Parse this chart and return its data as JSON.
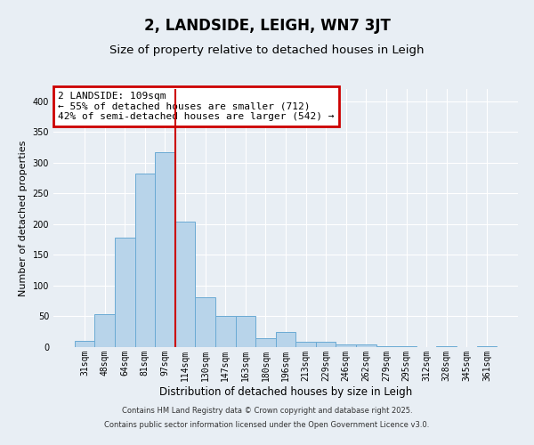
{
  "title": "2, LANDSIDE, LEIGH, WN7 3JT",
  "subtitle": "Size of property relative to detached houses in Leigh",
  "xlabel": "Distribution of detached houses by size in Leigh",
  "ylabel": "Number of detached properties",
  "bar_labels": [
    "31sqm",
    "48sqm",
    "64sqm",
    "81sqm",
    "97sqm",
    "114sqm",
    "130sqm",
    "147sqm",
    "163sqm",
    "180sqm",
    "196sqm",
    "213sqm",
    "229sqm",
    "246sqm",
    "262sqm",
    "279sqm",
    "295sqm",
    "312sqm",
    "328sqm",
    "345sqm",
    "361sqm"
  ],
  "bar_values": [
    10,
    54,
    178,
    283,
    317,
    204,
    81,
    51,
    51,
    15,
    24,
    8,
    9,
    4,
    4,
    1,
    1,
    0,
    1,
    0,
    1
  ],
  "bar_color": "#b8d4ea",
  "bar_edge_color": "#6aaad4",
  "vline_color": "#cc0000",
  "vline_pos": 4.5,
  "ylim": [
    0,
    420
  ],
  "yticks": [
    0,
    50,
    100,
    150,
    200,
    250,
    300,
    350,
    400
  ],
  "annotation_title": "2 LANDSIDE: 109sqm",
  "annotation_line1": "← 55% of detached houses are smaller (712)",
  "annotation_line2": "42% of semi-detached houses are larger (542) →",
  "annotation_box_edgecolor": "#cc0000",
  "annotation_box_facecolor": "#ffffff",
  "bg_color": "#e8eef4",
  "footer1": "Contains HM Land Registry data © Crown copyright and database right 2025.",
  "footer2": "Contains public sector information licensed under the Open Government Licence v3.0.",
  "title_fontsize": 12,
  "subtitle_fontsize": 9.5,
  "xlabel_fontsize": 8.5,
  "ylabel_fontsize": 8,
  "tick_fontsize": 7,
  "annotation_fontsize": 8,
  "footer_fontsize": 6
}
